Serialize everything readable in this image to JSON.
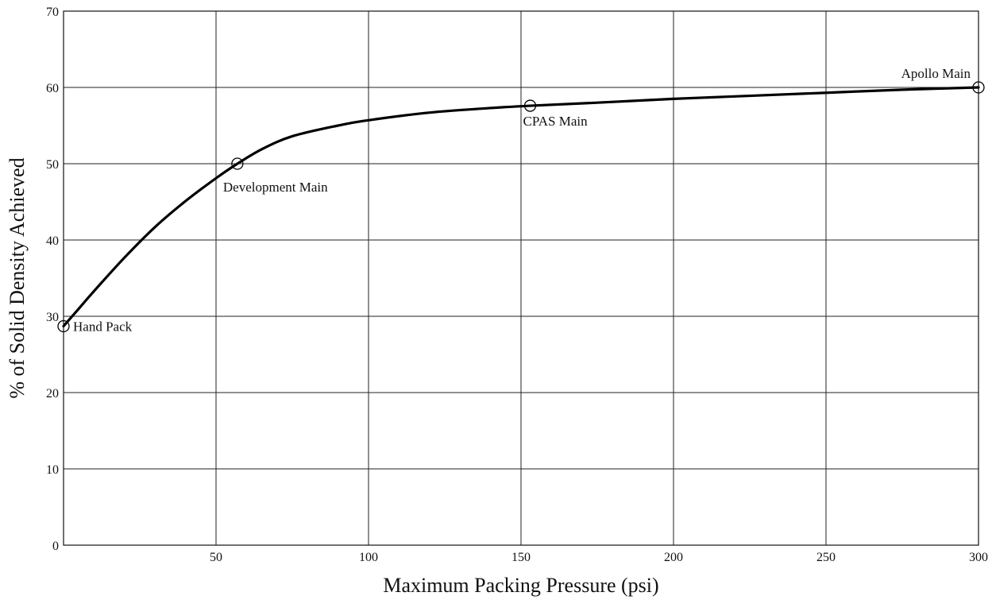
{
  "chart_data": {
    "type": "line",
    "title": "",
    "xlabel": "Maximum Packing Pressure (psi)",
    "ylabel": "% of Solid Density Achieved",
    "xlim": [
      0,
      300
    ],
    "ylim": [
      0,
      70
    ],
    "grid": true,
    "x_ticks": [
      50,
      100,
      150,
      200,
      250,
      300
    ],
    "y_ticks": [
      0,
      10,
      20,
      30,
      40,
      50,
      60,
      70
    ],
    "series": [
      {
        "x": [
          0,
          5,
          10,
          20,
          30,
          40,
          50,
          57,
          65,
          75,
          90,
          100,
          120,
          140,
          153,
          175,
          200,
          225,
          250,
          275,
          300
        ],
        "y": [
          28.7,
          31.0,
          33.3,
          37.7,
          41.7,
          45.1,
          48.1,
          50.0,
          51.9,
          53.6,
          55.0,
          55.7,
          56.7,
          57.3,
          57.6,
          58.0,
          58.5,
          58.9,
          59.3,
          59.7,
          60.0
        ],
        "color": "#000000"
      }
    ],
    "points": [
      {
        "x": 0,
        "y": 28.7,
        "label": "Hand Pack",
        "anchor": "right"
      },
      {
        "x": 57,
        "y": 50.0,
        "label": "Development Main",
        "anchor": "below"
      },
      {
        "x": 153,
        "y": 57.6,
        "label": "CPAS Main",
        "anchor": "below-right"
      },
      {
        "x": 300,
        "y": 60.0,
        "label": "Apollo Main",
        "anchor": "above-left"
      }
    ]
  }
}
